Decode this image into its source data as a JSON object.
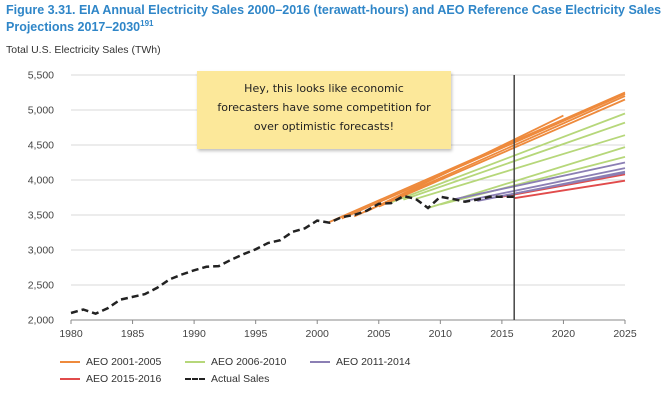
{
  "figure": {
    "title_main": "Figure 3.31. EIA Annual Electricity Sales 2000–2016 (terawatt-hours) and AEO Reference Case Electricity Sales Projections 2017–2030",
    "title_ref": "191"
  },
  "note": {
    "lines": [
      "Hey, this looks like economic",
      "forecasters have some competition for",
      "over optimistic forecasts!"
    ]
  },
  "colors": {
    "aeo_2001_2005": "#ee8a3c",
    "aeo_2006_2010": "#b6d77a",
    "aeo_2011_2014": "#8b7fb4",
    "aeo_2015_2016": "#e14b4b",
    "actual": "#222222",
    "marker": "#444444"
  },
  "chart_data": {
    "type": "line",
    "title": "",
    "xlabel": "",
    "ylabel": "Total U.S. Electricity Sales (TWh)",
    "xlim": [
      1980,
      2025
    ],
    "ylim": [
      2000,
      5500
    ],
    "x_ticks": [
      1980,
      1985,
      1990,
      1995,
      2000,
      2005,
      2010,
      2015,
      2020,
      2025
    ],
    "y_ticks": [
      2000,
      2500,
      3000,
      3500,
      4000,
      4500,
      5000,
      5500
    ],
    "y_tick_labels": [
      "2,000",
      "2,500",
      "3,000",
      "3,500",
      "4,000",
      "4,500",
      "5,000",
      "5,500"
    ],
    "x_tick_labels": [
      "1980",
      "1985",
      "1990",
      "1995",
      "2000",
      "2005",
      "2010",
      "2015",
      "2020",
      "2025"
    ],
    "grid": "horizontal",
    "legend_position": "bottom",
    "vertical_marker_x": 2016,
    "legend": [
      {
        "label": "AEO 2001-2005",
        "color_key": "aeo_2001_2005",
        "style": "solid"
      },
      {
        "label": "AEO 2006-2010",
        "color_key": "aeo_2006_2010",
        "style": "solid"
      },
      {
        "label": "AEO 2011-2014",
        "color_key": "aeo_2011_2014",
        "style": "solid"
      },
      {
        "label": "AEO 2015-2016",
        "color_key": "aeo_2015_2016",
        "style": "solid"
      },
      {
        "label": "Actual Sales",
        "color_key": "actual",
        "style": "dashed"
      }
    ],
    "series": [
      {
        "group": "aeo_2001_2005",
        "x": [
          2001,
          2025
        ],
        "y": [
          3400,
          5250
        ]
      },
      {
        "group": "aeo_2001_2005",
        "x": [
          2002,
          2025
        ],
        "y": [
          3450,
          5230
        ]
      },
      {
        "group": "aeo_2001_2005",
        "x": [
          2003,
          2025
        ],
        "y": [
          3480,
          5200
        ]
      },
      {
        "group": "aeo_2001_2005",
        "x": [
          2004,
          2020
        ],
        "y": [
          3550,
          4920
        ]
      },
      {
        "group": "aeo_2001_2005",
        "x": [
          2005,
          2025
        ],
        "y": [
          3620,
          5150
        ]
      },
      {
        "group": "aeo_2006_2010",
        "x": [
          2006,
          2025
        ],
        "y": [
          3680,
          4950
        ]
      },
      {
        "group": "aeo_2006_2010",
        "x": [
          2007,
          2025
        ],
        "y": [
          3720,
          4820
        ]
      },
      {
        "group": "aeo_2006_2010",
        "x": [
          2008,
          2025
        ],
        "y": [
          3730,
          4640
        ]
      },
      {
        "group": "aeo_2006_2010",
        "x": [
          2009,
          2025
        ],
        "y": [
          3600,
          4470
        ]
      },
      {
        "group": "aeo_2006_2010",
        "x": [
          2010,
          2025
        ],
        "y": [
          3650,
          4330
        ]
      },
      {
        "group": "aeo_2011_2014",
        "x": [
          2011,
          2025
        ],
        "y": [
          3720,
          4250
        ]
      },
      {
        "group": "aeo_2011_2014",
        "x": [
          2012,
          2025
        ],
        "y": [
          3700,
          4170
        ]
      },
      {
        "group": "aeo_2011_2014",
        "x": [
          2013,
          2025
        ],
        "y": [
          3700,
          4120
        ]
      },
      {
        "group": "aeo_2011_2014",
        "x": [
          2014,
          2025
        ],
        "y": [
          3740,
          4100
        ]
      },
      {
        "group": "aeo_2015_2016",
        "x": [
          2015,
          2025
        ],
        "y": [
          3760,
          4080
        ]
      },
      {
        "group": "aeo_2015_2016",
        "x": [
          2016,
          2025
        ],
        "y": [
          3740,
          3990
        ]
      }
    ],
    "actual": {
      "x": [
        1980,
        1981,
        1982,
        1983,
        1984,
        1985,
        1986,
        1987,
        1988,
        1989,
        1990,
        1991,
        1992,
        1993,
        1994,
        1995,
        1996,
        1997,
        1998,
        1999,
        2000,
        2001,
        2002,
        2003,
        2004,
        2005,
        2006,
        2007,
        2008,
        2009,
        2010,
        2011,
        2012,
        2013,
        2014,
        2015,
        2016
      ],
      "y": [
        2100,
        2150,
        2090,
        2170,
        2290,
        2330,
        2370,
        2460,
        2580,
        2650,
        2710,
        2760,
        2770,
        2860,
        2940,
        3010,
        3100,
        3140,
        3260,
        3310,
        3420,
        3390,
        3470,
        3500,
        3560,
        3660,
        3670,
        3770,
        3730,
        3600,
        3760,
        3730,
        3690,
        3720,
        3760,
        3760,
        3760
      ]
    }
  }
}
